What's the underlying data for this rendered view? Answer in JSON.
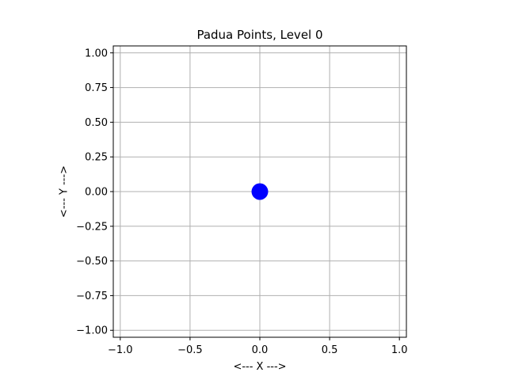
{
  "chart_data": {
    "type": "scatter",
    "title": "Padua Points, Level 0",
    "xlabel": "<--- X --->",
    "ylabel": "<--- Y --->",
    "xlim": [
      -1.05,
      1.05
    ],
    "ylim": [
      -1.05,
      1.05
    ],
    "xticks": [
      -1.0,
      -0.5,
      0.0,
      0.5,
      1.0
    ],
    "xtick_labels": [
      "−1.0",
      "−0.5",
      "0.0",
      "0.5",
      "1.0"
    ],
    "yticks": [
      1.0,
      0.75,
      0.5,
      0.25,
      0.0,
      -0.25,
      -0.5,
      -0.75,
      -1.0
    ],
    "ytick_labels": [
      "1.00",
      "0.75",
      "0.50",
      "0.25",
      "0.00",
      "−0.25",
      "−0.50",
      "−0.75",
      "−1.00"
    ],
    "grid": true,
    "aspect": "equal",
    "points": [
      {
        "x": 0.0,
        "y": 0.0
      }
    ],
    "marker_color": "#0000ff",
    "grid_color": "#b0b0b0"
  }
}
